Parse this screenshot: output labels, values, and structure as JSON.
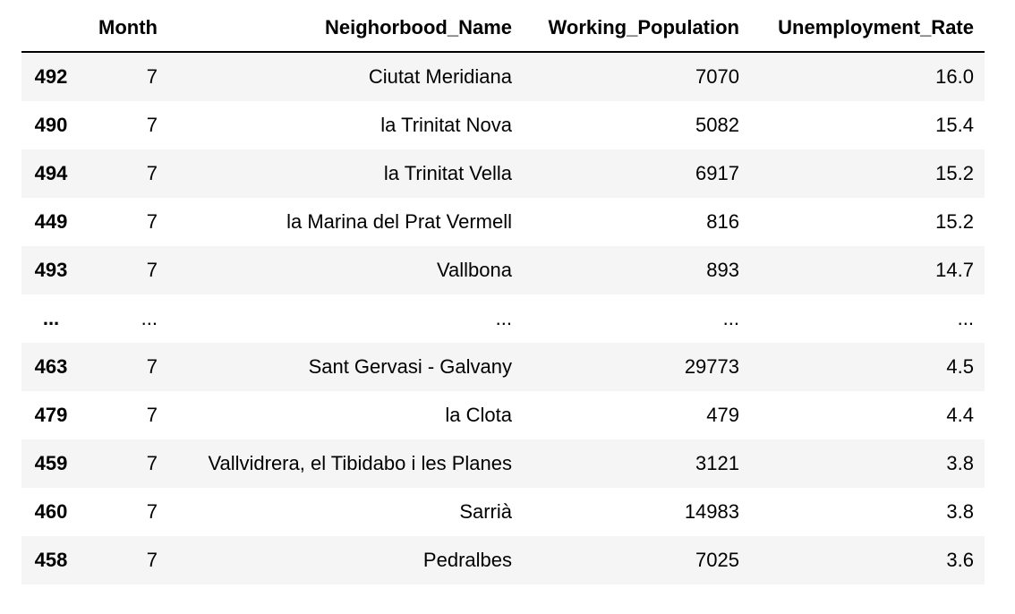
{
  "columns": {
    "index": "",
    "month": "Month",
    "name": "Neighorbood_Name",
    "population": "Working_Population",
    "rate": "Unemployment_Rate"
  },
  "rows": [
    {
      "index": "492",
      "month": "7",
      "name": "Ciutat Meridiana",
      "population": "7070",
      "rate": "16.0"
    },
    {
      "index": "490",
      "month": "7",
      "name": "la Trinitat Nova",
      "population": "5082",
      "rate": "15.4"
    },
    {
      "index": "494",
      "month": "7",
      "name": "la Trinitat Vella",
      "population": "6917",
      "rate": "15.2"
    },
    {
      "index": "449",
      "month": "7",
      "name": "la Marina del Prat Vermell",
      "population": "816",
      "rate": "15.2"
    },
    {
      "index": "493",
      "month": "7",
      "name": "Vallbona",
      "population": "893",
      "rate": "14.7"
    },
    {
      "index": "...",
      "month": "...",
      "name": "...",
      "population": "...",
      "rate": "..."
    },
    {
      "index": "463",
      "month": "7",
      "name": "Sant Gervasi - Galvany",
      "population": "29773",
      "rate": "4.5"
    },
    {
      "index": "479",
      "month": "7",
      "name": "la Clota",
      "population": "479",
      "rate": "4.4"
    },
    {
      "index": "459",
      "month": "7",
      "name": "Vallvidrera, el Tibidabo i les Planes",
      "population": "3121",
      "rate": "3.8"
    },
    {
      "index": "460",
      "month": "7",
      "name": "Sarrià",
      "population": "14983",
      "rate": "3.8"
    },
    {
      "index": "458",
      "month": "7",
      "name": "Pedralbes",
      "population": "7025",
      "rate": "3.6"
    }
  ]
}
